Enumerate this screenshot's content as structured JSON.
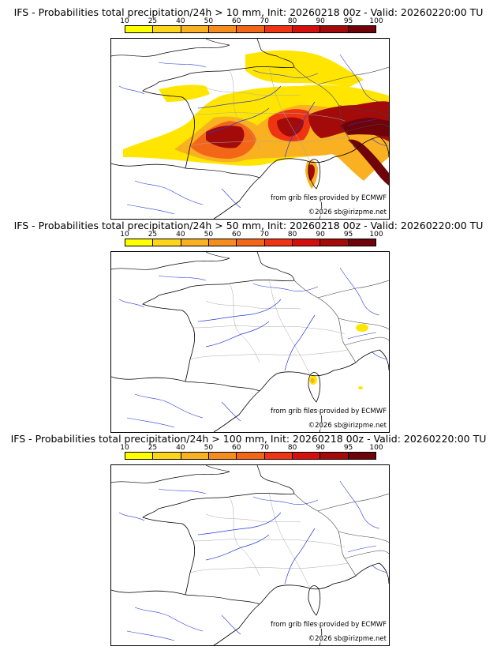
{
  "colorbar": {
    "ticks": [
      "10",
      "25",
      "40",
      "50",
      "60",
      "70",
      "80",
      "90",
      "95",
      "100"
    ],
    "colors": [
      "#ffff00",
      "#fdd61b",
      "#f9b021",
      "#f58d1e",
      "#f46617",
      "#ef3413",
      "#d4100e",
      "#a30a0a",
      "#70030a"
    ]
  },
  "panels": [
    {
      "title": "IFS - Probabilities total precipitation/24h > 10 mm, Init: 20260218 00z - Valid: 20260220:00 TU",
      "source": "from grib files provided by ECMWF",
      "copyright": "©2026 sb@irizpme.net"
    },
    {
      "title": "IFS - Probabilities total precipitation/24h > 50 mm, Init: 20260218 00z - Valid: 20260220:00 TU",
      "source": "from grib files provided by ECMWF",
      "copyright": "©2026 sb@irizpme.net"
    },
    {
      "title": "IFS - Probabilities total precipitation/24h > 100 mm, Init: 20260218 00z - Valid: 20260220:00 TU",
      "source": "from grib files provided by ECMWF",
      "copyright": "©2026 sb@irizpme.net"
    }
  ]
}
